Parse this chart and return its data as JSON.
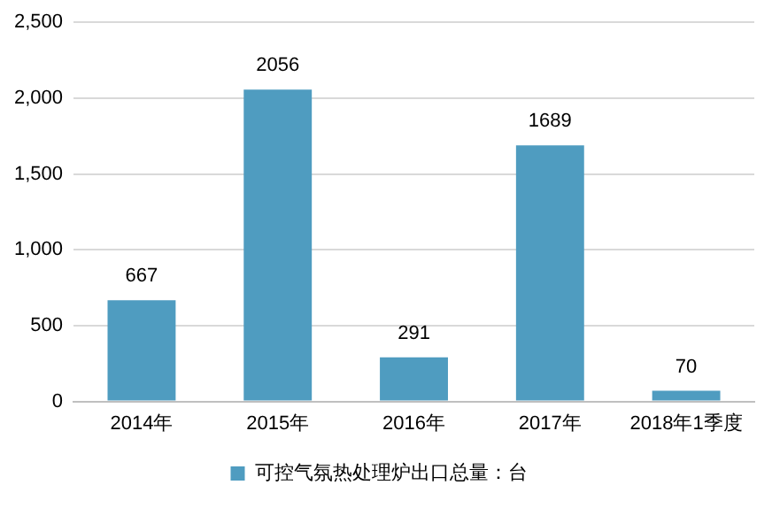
{
  "chart_data": {
    "type": "bar",
    "categories": [
      "2014年",
      "2015年",
      "2016年",
      "2017年",
      "2018年1季度"
    ],
    "series": [
      {
        "name": "可控气氛热处理炉出口总量：台",
        "color": "#4f9cc0",
        "values": [
          667,
          2056,
          291,
          1689,
          70
        ]
      }
    ],
    "ylim": [
      0,
      2500
    ],
    "yticks": [
      0,
      500,
      {
        "value": 1000,
        "label": "1,000"
      },
      {
        "value": 1500,
        "label": "1,500"
      },
      {
        "value": 2000,
        "label": "2,000"
      },
      {
        "value": 2500,
        "label": "2,500"
      }
    ],
    "grid": "y",
    "legend": "bottom",
    "data_labels": true
  }
}
